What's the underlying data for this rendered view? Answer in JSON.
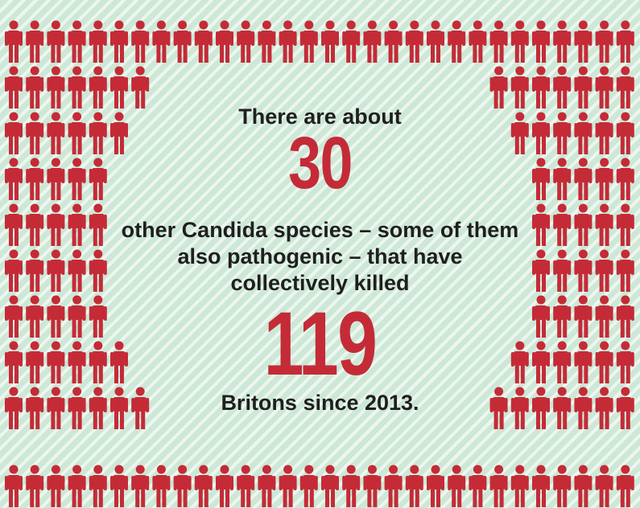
{
  "colors": {
    "figure": "#c42b37",
    "text": "#1f1f1f",
    "background": "#cde8d6"
  },
  "figure_icon": "person-icon",
  "text": {
    "intro": "There are about",
    "number1": "30",
    "body": "other Candida species – some of them also pathogenic – that have collectively killed",
    "number2": "119",
    "outro": "Britons since 2013."
  }
}
